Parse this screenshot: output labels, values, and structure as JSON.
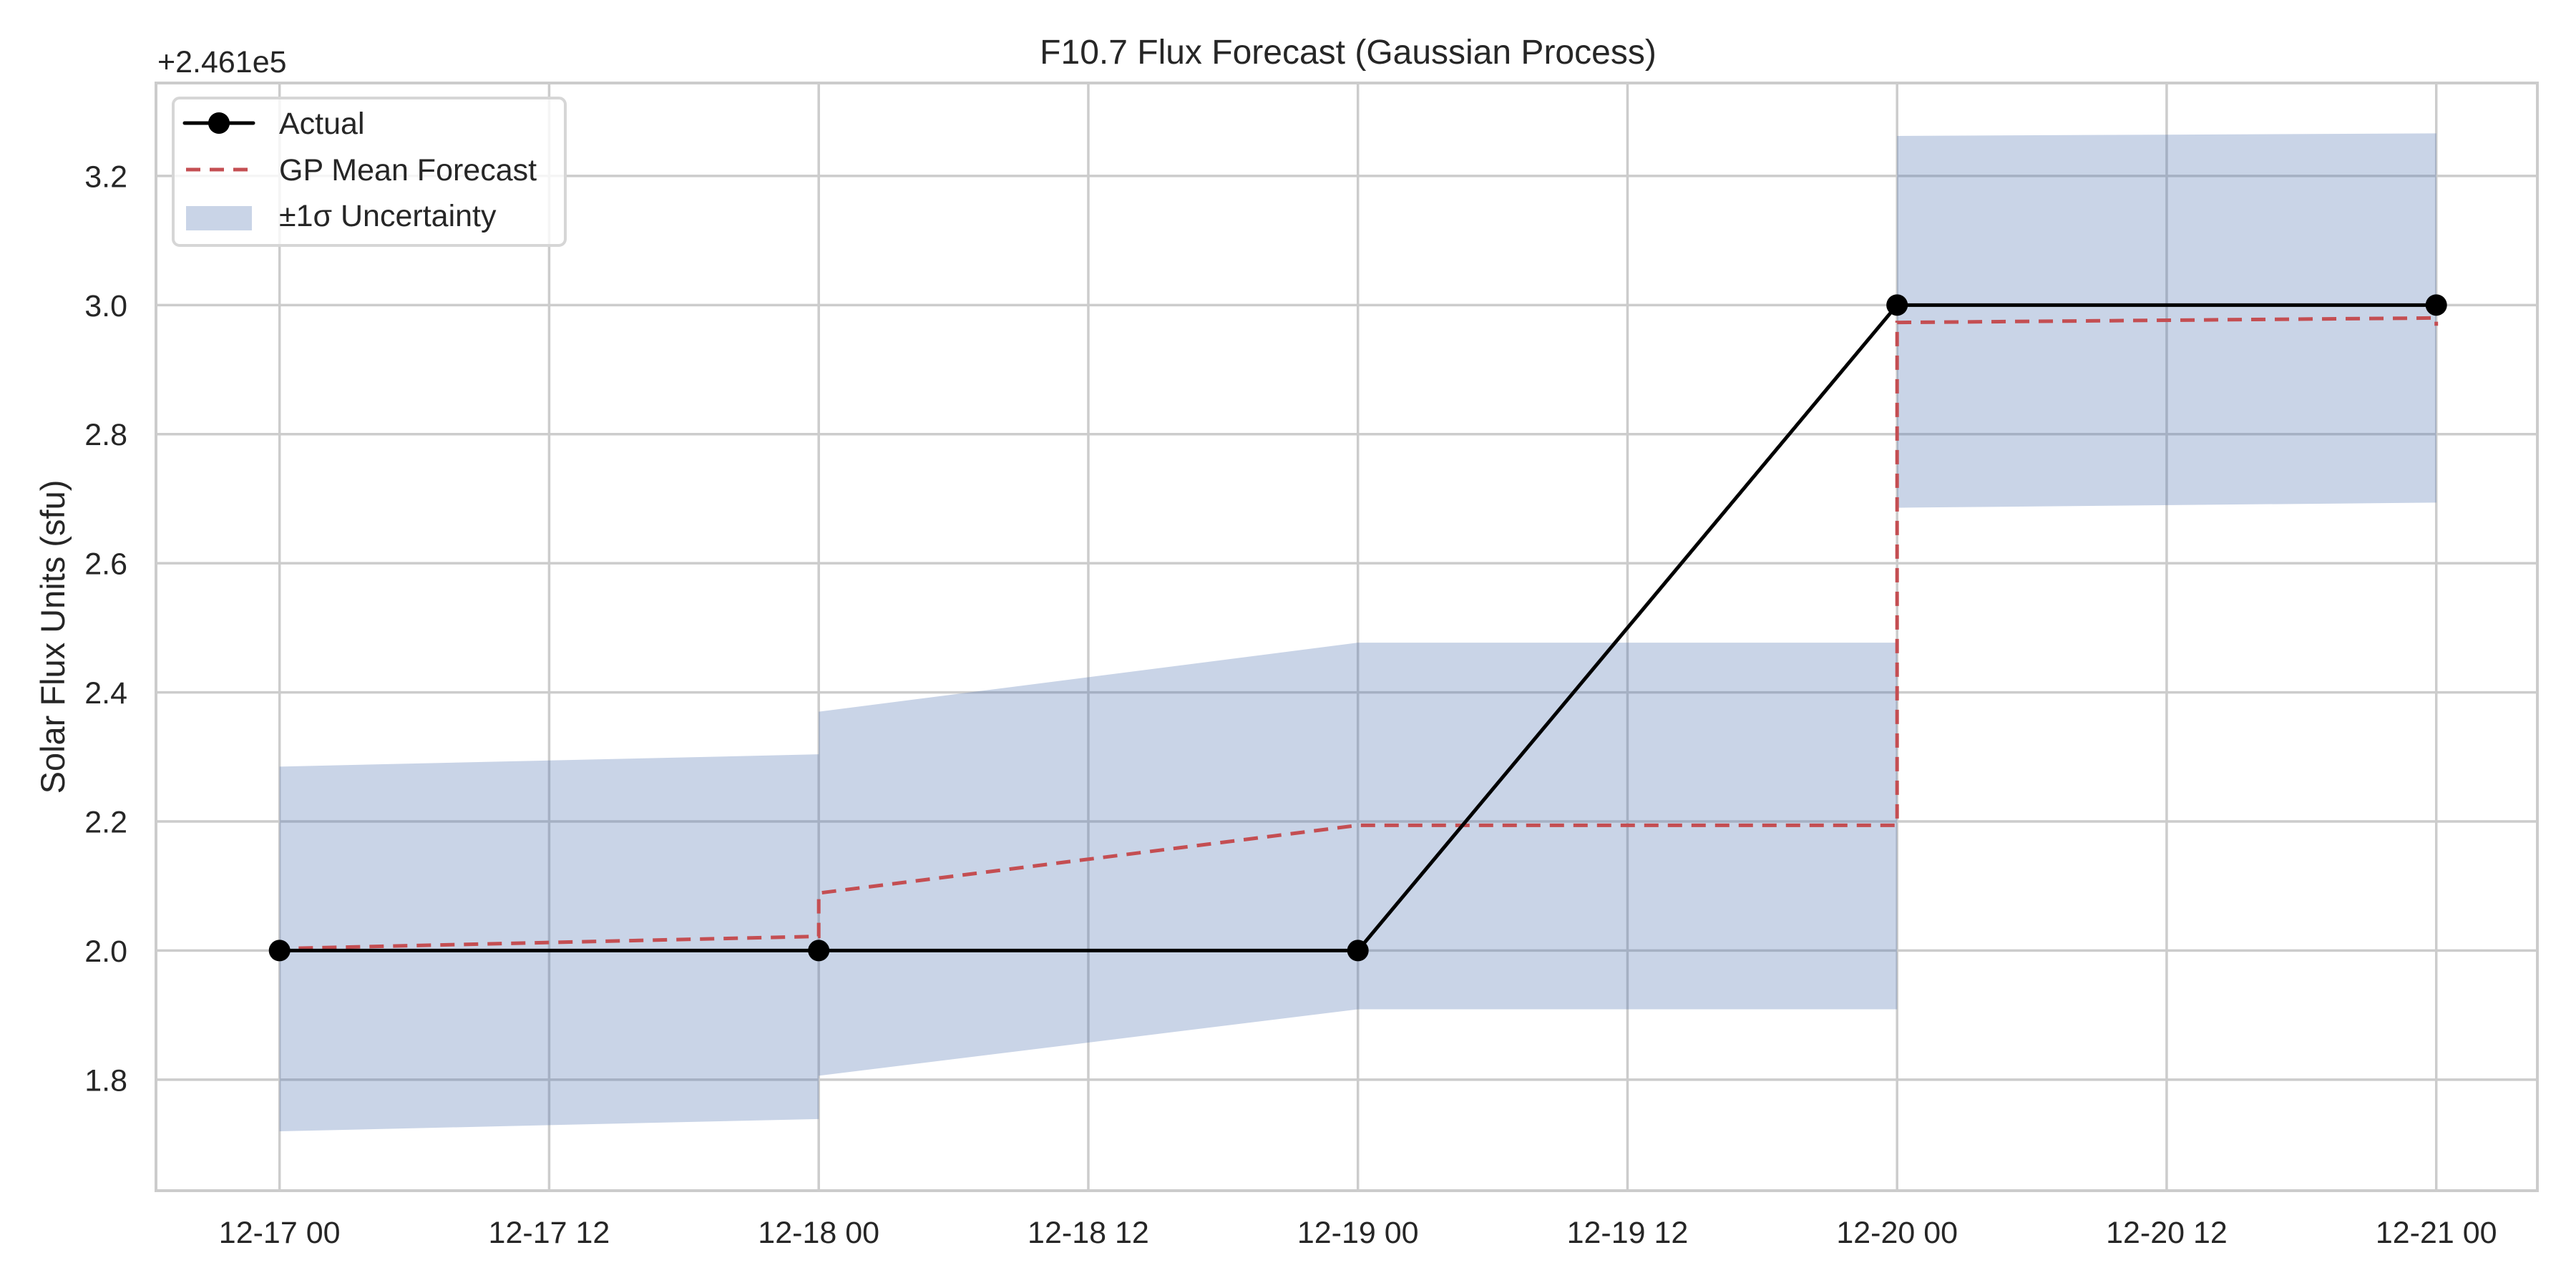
{
  "chart_data": {
    "type": "line",
    "title": "F10.7 Flux Forecast (Gaussian Process)",
    "xlabel": "",
    "ylabel": "Solar Flux Units (sfu)",
    "y_offset_text": "+2.461e5",
    "y_offset_value": 246100,
    "ylim": [
      1.628,
      3.344
    ],
    "xlim_hours": [
      -5.5,
      100.5
    ],
    "grid": true,
    "legend_position": "upper left",
    "x_ticks": [
      {
        "hours": 0,
        "label": "12-17 00"
      },
      {
        "hours": 12,
        "label": "12-17 12"
      },
      {
        "hours": 24,
        "label": "12-18 00"
      },
      {
        "hours": 36,
        "label": "12-18 12"
      },
      {
        "hours": 48,
        "label": "12-19 00"
      },
      {
        "hours": 60,
        "label": "12-19 12"
      },
      {
        "hours": 72,
        "label": "12-20 00"
      },
      {
        "hours": 84,
        "label": "12-20 12"
      },
      {
        "hours": 96,
        "label": "12-21 00"
      }
    ],
    "y_ticks": [
      {
        "value": 1.8,
        "label": "1.8"
      },
      {
        "value": 2.0,
        "label": "2.0"
      },
      {
        "value": 2.2,
        "label": "2.2"
      },
      {
        "value": 2.4,
        "label": "2.4"
      },
      {
        "value": 2.6,
        "label": "2.6"
      },
      {
        "value": 2.8,
        "label": "2.8"
      },
      {
        "value": 3.0,
        "label": "3.0"
      },
      {
        "value": 3.2,
        "label": "3.2"
      }
    ],
    "series": [
      {
        "name": "Actual",
        "style": "solid-with-markers",
        "color": "#000000",
        "x": [
          "12-17 00",
          "12-18 00",
          "12-19 00",
          "12-20 00",
          "12-21 00"
        ],
        "x_hours": [
          0,
          24,
          48,
          72,
          96
        ],
        "values": [
          2.0,
          2.0,
          2.0,
          3.0,
          3.0
        ]
      },
      {
        "name": "GP Mean Forecast",
        "style": "dashed",
        "color": "#c44e52",
        "points": [
          [
            0,
            1.996
          ],
          [
            0,
            2.003
          ],
          [
            24,
            2.022
          ],
          [
            24,
            2.089
          ],
          [
            48,
            2.194
          ],
          [
            72,
            2.194
          ],
          [
            72,
            2.973
          ],
          [
            96,
            2.98
          ],
          [
            96,
            2.968
          ]
        ]
      },
      {
        "name": "±1σ Uncertainty",
        "style": "band",
        "color": "#4c72b0",
        "opacity": 0.3,
        "segments": [
          {
            "x_hours": [
              0,
              24
            ],
            "upper": [
              2.285,
              2.304
            ],
            "lower": [
              1.72,
              1.739
            ]
          },
          {
            "x_hours": [
              24,
              48
            ],
            "upper": [
              2.37,
              2.477
            ],
            "lower": [
              1.806,
              1.909
            ]
          },
          {
            "x_hours": [
              48,
              72
            ],
            "upper": [
              2.477,
              2.477
            ],
            "lower": [
              1.909,
              1.909
            ]
          },
          {
            "x_hours": [
              72,
              96
            ],
            "upper": [
              3.262,
              3.266
            ],
            "lower": [
              2.686,
              2.694
            ]
          }
        ]
      }
    ]
  },
  "legend": {
    "items": [
      {
        "label": "Actual"
      },
      {
        "label": "GP Mean Forecast"
      },
      {
        "label": "±1σ Uncertainty"
      }
    ]
  },
  "colors": {
    "grid": "#cccccc",
    "spine": "#cccccc",
    "actual": "#000000",
    "mean": "#c44e52",
    "band": "#4c72b0",
    "text": "#262626"
  }
}
